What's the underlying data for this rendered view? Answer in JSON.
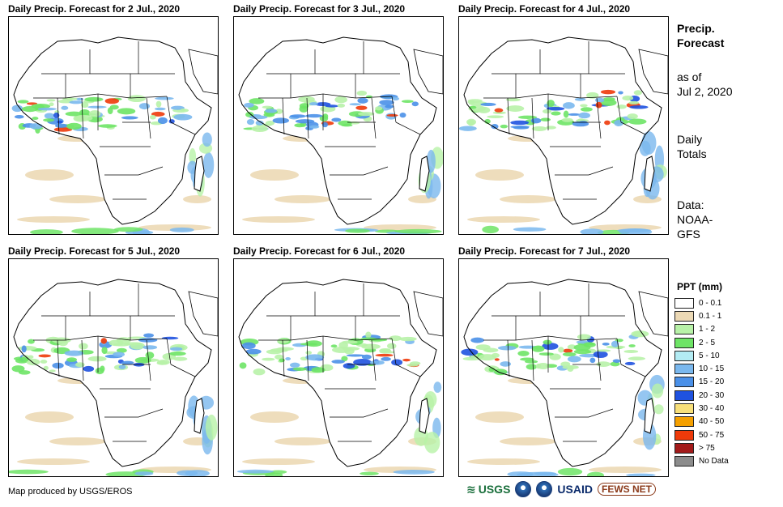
{
  "panels": [
    {
      "title": "Daily Precip. Forecast for 2 Jul., 2020"
    },
    {
      "title": "Daily Precip. Forecast for 3 Jul., 2020"
    },
    {
      "title": "Daily Precip. Forecast for 4 Jul., 2020"
    },
    {
      "title": "Daily Precip. Forecast for 5 Jul., 2020"
    },
    {
      "title": "Daily Precip. Forecast for 6 Jul., 2020"
    },
    {
      "title": "Daily Precip. Forecast for 7 Jul., 2020"
    }
  ],
  "side": {
    "heading_line1": "Precip.",
    "heading_line2": "Forecast",
    "asof_line1": "as of",
    "asof_line2": "Jul 2, 2020",
    "totals_line1": "Daily",
    "totals_line2": "Totals",
    "data_line1": "Data:",
    "data_line2": "NOAA-",
    "data_line3": "GFS"
  },
  "legend": {
    "title": "PPT (mm)",
    "items": [
      {
        "label": "0 - 0.1",
        "color": "#ffffff"
      },
      {
        "label": "0.1 - 1",
        "color": "#ecd9b5"
      },
      {
        "label": "1 - 2",
        "color": "#b8f2a8"
      },
      {
        "label": "2 - 5",
        "color": "#6ee466"
      },
      {
        "label": "5 - 10",
        "color": "#b3ecf4"
      },
      {
        "label": "10 - 15",
        "color": "#7ab8ee"
      },
      {
        "label": "15 - 20",
        "color": "#4a90e8"
      },
      {
        "label": "20 - 30",
        "color": "#1f52e0"
      },
      {
        "label": "30 - 40",
        "color": "#f8e07a"
      },
      {
        "label": "40 - 50",
        "color": "#f5a000"
      },
      {
        "label": "50 - 75",
        "color": "#ee3a0a"
      },
      {
        "label": "> 75",
        "color": "#a31a1a"
      },
      {
        "label": "No Data",
        "color": "#8c8c8c"
      }
    ]
  },
  "credit": "Map produced by USGS/EROS",
  "logos": {
    "usgs": "USGS",
    "usaid": "USAID",
    "fews": "FEWS NET"
  }
}
